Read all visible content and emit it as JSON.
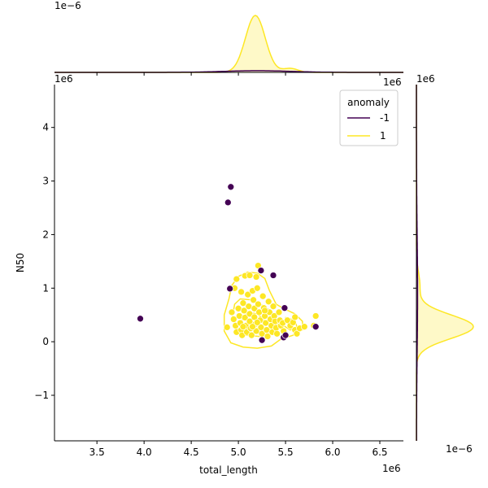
{
  "chart_data": {
    "type": "scatter",
    "x_label": "total_length",
    "y_label": "N50",
    "x_offset": "1e6",
    "y_offset": "1e6",
    "x_lim": [
      3.05,
      6.75
    ],
    "y_lim": [
      -1.85,
      4.8
    ],
    "x_ticks": [
      "3.5",
      "4.0",
      "4.5",
      "5.0",
      "5.5",
      "6.0",
      "6.5"
    ],
    "y_ticks": [
      "−1",
      "0",
      "1",
      "2",
      "3",
      "4"
    ],
    "marginal_top_offset": "1e−6",
    "marginal_top_corner": "1e6",
    "marginal_right_offset": "1e−6",
    "marginal_right_corner": "1e6",
    "legend": {
      "title": "anomaly",
      "entries": [
        {
          "label": "-1",
          "color": "#440154"
        },
        {
          "label": "1",
          "color": "#fde725"
        }
      ]
    },
    "series": [
      {
        "name": "-1",
        "color": "#440154",
        "points": [
          [
            3.96,
            0.43
          ],
          [
            4.89,
            2.6
          ],
          [
            4.92,
            2.89
          ],
          [
            4.91,
            0.99
          ],
          [
            5.24,
            1.33
          ],
          [
            5.37,
            1.24
          ],
          [
            5.25,
            0.03
          ],
          [
            5.48,
            0.08
          ],
          [
            5.49,
            0.63
          ],
          [
            5.5,
            0.12
          ],
          [
            5.82,
            0.28
          ]
        ]
      },
      {
        "name": "1",
        "color": "#fde725",
        "points": [
          [
            4.88,
            0.27
          ],
          [
            4.93,
            0.55
          ],
          [
            4.95,
            0.42
          ],
          [
            4.97,
            0.3
          ],
          [
            4.98,
            0.18
          ],
          [
            4.96,
            1.0
          ],
          [
            4.98,
            1.17
          ],
          [
            5.0,
            0.62
          ],
          [
            5.01,
            0.48
          ],
          [
            5.02,
            0.35
          ],
          [
            5.03,
            0.22
          ],
          [
            5.04,
            0.12
          ],
          [
            5.03,
            0.93
          ],
          [
            5.05,
            0.72
          ],
          [
            5.06,
            0.58
          ],
          [
            5.07,
            0.45
          ],
          [
            5.08,
            0.3
          ],
          [
            5.09,
            0.18
          ],
          [
            5.07,
            1.23
          ],
          [
            5.1,
            0.88
          ],
          [
            5.11,
            0.66
          ],
          [
            5.12,
            0.52
          ],
          [
            5.12,
            0.38
          ],
          [
            5.13,
            0.25
          ],
          [
            5.14,
            0.12
          ],
          [
            5.12,
            1.24
          ],
          [
            5.15,
            0.95
          ],
          [
            5.16,
            0.78
          ],
          [
            5.17,
            0.62
          ],
          [
            5.17,
            0.46
          ],
          [
            5.18,
            0.33
          ],
          [
            5.19,
            0.2
          ],
          [
            5.19,
            1.21
          ],
          [
            5.2,
            1.0
          ],
          [
            5.21,
            0.7
          ],
          [
            5.21,
            1.42
          ],
          [
            5.22,
            0.55
          ],
          [
            5.23,
            0.4
          ],
          [
            5.24,
            0.27
          ],
          [
            5.25,
            0.15
          ],
          [
            5.26,
            0.85
          ],
          [
            5.27,
            0.63
          ],
          [
            5.28,
            0.48
          ],
          [
            5.29,
            0.35
          ],
          [
            5.3,
            0.22
          ],
          [
            5.31,
            0.1
          ],
          [
            5.32,
            0.75
          ],
          [
            5.33,
            0.55
          ],
          [
            5.34,
            0.42
          ],
          [
            5.35,
            0.3
          ],
          [
            5.36,
            0.18
          ],
          [
            5.37,
            0.66
          ],
          [
            5.38,
            0.48
          ],
          [
            5.39,
            0.38
          ],
          [
            5.4,
            0.26
          ],
          [
            5.41,
            0.15
          ],
          [
            5.43,
            0.55
          ],
          [
            5.44,
            0.4
          ],
          [
            5.45,
            0.3
          ],
          [
            5.47,
            0.35
          ],
          [
            5.48,
            0.2
          ],
          [
            5.52,
            0.4
          ],
          [
            5.55,
            0.3
          ],
          [
            5.58,
            0.36
          ],
          [
            5.6,
            0.22
          ],
          [
            5.62,
            0.15
          ],
          [
            5.65,
            0.25
          ],
          [
            5.7,
            0.28
          ],
          [
            5.8,
            0.3
          ],
          [
            5.82,
            0.48
          ],
          [
            5.6,
            0.46
          ],
          [
            5.2,
            0.36
          ],
          [
            5.15,
            0.28
          ],
          [
            5.05,
            0.28
          ],
          [
            5.28,
            0.58
          ]
        ]
      }
    ],
    "marginal_x": {
      "series_1": {
        "mean": 5.18,
        "sd": 0.105,
        "peak_rel": 1.0
      },
      "series_neg1": {
        "mean": 5.2,
        "sd": 0.35,
        "peak_rel": 0.03
      }
    },
    "marginal_y": {
      "series_1": {
        "mean": 0.28,
        "sd": 0.22,
        "peak_rel": 1.0
      },
      "series_neg1": {
        "mean": 0.9,
        "sd": 1.1,
        "peak_rel": 0.02
      }
    }
  }
}
